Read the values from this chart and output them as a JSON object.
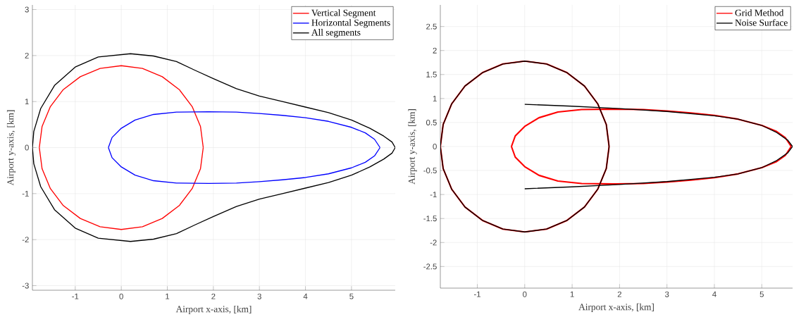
{
  "chart_data": [
    {
      "type": "line",
      "xlabel": "Airport x-axis, [km]",
      "ylabel": "Airport y-axis, [km]",
      "xlim": [
        -1.93,
        5.95
      ],
      "ylim": [
        -3.1,
        3.1
      ],
      "xticks": [
        -1,
        0,
        1,
        2,
        3,
        4,
        5
      ],
      "yticks": [
        -3,
        -2,
        -1,
        0,
        1,
        2,
        3
      ],
      "grid": true,
      "legend": "top right",
      "series": [
        {
          "name": "Vertical Segment",
          "color": "#ff0000",
          "x": [
            1.78,
            1.72,
            1.54,
            1.26,
            0.89,
            0.46,
            0,
            -0.46,
            -0.89,
            -1.26,
            -1.54,
            -1.72,
            -1.78,
            null,
            -1.78,
            -1.72,
            -1.54,
            -1.26,
            -0.89,
            -0.46,
            0,
            0.46,
            0.89,
            1.26,
            1.54,
            1.72,
            1.78
          ],
          "values": [
            0,
            0.46,
            0.89,
            1.26,
            1.54,
            1.72,
            1.78,
            1.72,
            1.54,
            1.26,
            0.89,
            0.46,
            0,
            null,
            0,
            -0.46,
            -0.89,
            -1.26,
            -1.54,
            -1.72,
            -1.78,
            -1.72,
            -1.54,
            -1.26,
            -0.89,
            -0.46,
            0
          ]
        },
        {
          "name": "Horizontal Segments",
          "color": "#0000ff",
          "x": [
            5.62,
            5.5,
            5.3,
            5,
            4.5,
            4,
            3.5,
            3,
            2.5,
            1.9,
            1.2,
            0.7,
            0.3,
            0,
            -0.2,
            -0.28,
            null,
            -0.28,
            -0.2,
            0,
            0.3,
            0.7,
            1.2,
            1.9,
            2.5,
            3,
            3.5,
            4,
            4.5,
            5,
            5.3,
            5.5,
            5.62
          ],
          "values": [
            0,
            0.18,
            0.32,
            0.44,
            0.57,
            0.65,
            0.7,
            0.74,
            0.77,
            0.78,
            0.77,
            0.72,
            0.6,
            0.42,
            0.22,
            0,
            null,
            0,
            -0.22,
            -0.42,
            -0.6,
            -0.72,
            -0.77,
            -0.78,
            -0.77,
            -0.74,
            -0.7,
            -0.65,
            -0.57,
            -0.44,
            -0.32,
            -0.18,
            0
          ]
        },
        {
          "name": "All segments",
          "color": "#000000",
          "x": [
            5.95,
            5.88,
            5.7,
            5.4,
            5,
            4.5,
            4,
            3.5,
            3,
            2.5,
            2,
            1.6,
            1.2,
            0.7,
            0.2,
            -0.5,
            -1,
            -1.45,
            -1.75,
            -1.9,
            -1.93,
            null,
            -1.93,
            -1.9,
            -1.75,
            -1.45,
            -1,
            -0.5,
            0.2,
            0.7,
            1.2,
            1.6,
            2,
            2.5,
            3,
            3.5,
            4,
            4.5,
            5,
            5.4,
            5.7,
            5.88,
            5.95
          ],
          "values": [
            0,
            0.12,
            0.25,
            0.42,
            0.6,
            0.76,
            0.88,
            1.0,
            1.12,
            1.28,
            1.5,
            1.68,
            1.87,
            1.99,
            2.04,
            1.97,
            1.75,
            1.35,
            0.85,
            0.35,
            0,
            null,
            0,
            -0.35,
            -0.85,
            -1.35,
            -1.75,
            -1.97,
            -2.04,
            -1.99,
            -1.87,
            -1.68,
            -1.5,
            -1.28,
            -1.12,
            -1.0,
            -0.88,
            -0.76,
            -0.6,
            -0.42,
            -0.25,
            -0.12,
            0
          ]
        }
      ]
    },
    {
      "type": "line",
      "xlabel": "Airport x-axis, [km]",
      "ylabel": "Airport y-axis, [km]",
      "xlim": [
        -1.78,
        5.65
      ],
      "ylim": [
        -2.95,
        2.95
      ],
      "xticks": [
        -1,
        0,
        1,
        2,
        3,
        4,
        5
      ],
      "yticks": [
        -2.5,
        -2,
        -1.5,
        -1,
        -0.5,
        0,
        0.5,
        1,
        1.5,
        2,
        2.5
      ],
      "grid": true,
      "legend": "top right",
      "series": [
        {
          "name": "Grid Method",
          "color": "#ff0000",
          "x": [
            1.78,
            1.72,
            1.54,
            1.26,
            0.89,
            0.46,
            0,
            -0.46,
            -0.89,
            -1.26,
            -1.54,
            -1.72,
            -1.78,
            null,
            -1.78,
            -1.72,
            -1.54,
            -1.26,
            -0.89,
            -0.46,
            0,
            0.46,
            0.89,
            1.26,
            1.54,
            1.72,
            1.78,
            null,
            5.62,
            5.5,
            5.3,
            5,
            4.5,
            4,
            3.5,
            3,
            2.5,
            1.9,
            1.2,
            0.7,
            0.3,
            0,
            -0.2,
            -0.28,
            null,
            -0.28,
            -0.2,
            0,
            0.3,
            0.7,
            1.2,
            1.9,
            2.5,
            3,
            3.5,
            4,
            4.5,
            5,
            5.3,
            5.5,
            5.62
          ],
          "values": [
            0,
            0.46,
            0.89,
            1.26,
            1.54,
            1.72,
            1.78,
            1.72,
            1.54,
            1.26,
            0.89,
            0.46,
            0,
            null,
            0,
            -0.46,
            -0.89,
            -1.26,
            -1.54,
            -1.72,
            -1.78,
            -1.72,
            -1.54,
            -1.26,
            -0.89,
            -0.46,
            0,
            null,
            0,
            0.18,
            0.32,
            0.44,
            0.57,
            0.65,
            0.7,
            0.74,
            0.77,
            0.78,
            0.77,
            0.72,
            0.6,
            0.42,
            0.22,
            0,
            null,
            0,
            -0.22,
            -0.42,
            -0.6,
            -0.72,
            -0.77,
            -0.78,
            -0.77,
            -0.74,
            -0.7,
            -0.65,
            -0.57,
            -0.44,
            -0.32,
            -0.18,
            0
          ]
        },
        {
          "name": "Noise Surface",
          "color": "#000000",
          "x": [
            1.78,
            1.72,
            1.54,
            1.26,
            0.89,
            0.46,
            0,
            -0.46,
            -0.89,
            -1.26,
            -1.54,
            -1.72,
            -1.78,
            null,
            -1.78,
            -1.72,
            -1.54,
            -1.26,
            -0.89,
            -0.46,
            0,
            0.46,
            0.89,
            1.26,
            1.54,
            1.72,
            1.78,
            null,
            0,
            1,
            2,
            3,
            4,
            4.5,
            5,
            5.3,
            5.55,
            5.65,
            null,
            5.65,
            5.55,
            5.3,
            5,
            4.5,
            4,
            3,
            2,
            1,
            0
          ],
          "values": [
            0,
            0.46,
            0.89,
            1.26,
            1.54,
            1.72,
            1.78,
            1.72,
            1.54,
            1.26,
            0.89,
            0.46,
            0,
            null,
            0,
            -0.46,
            -0.89,
            -1.26,
            -1.54,
            -1.72,
            -1.78,
            -1.72,
            -1.54,
            -1.26,
            -0.89,
            -0.46,
            0,
            null,
            0.88,
            0.84,
            0.79,
            0.73,
            0.64,
            0.57,
            0.44,
            0.3,
            0.13,
            0,
            null,
            0,
            -0.13,
            -0.3,
            -0.44,
            -0.57,
            -0.64,
            -0.73,
            -0.79,
            -0.84,
            -0.88
          ]
        }
      ]
    }
  ]
}
